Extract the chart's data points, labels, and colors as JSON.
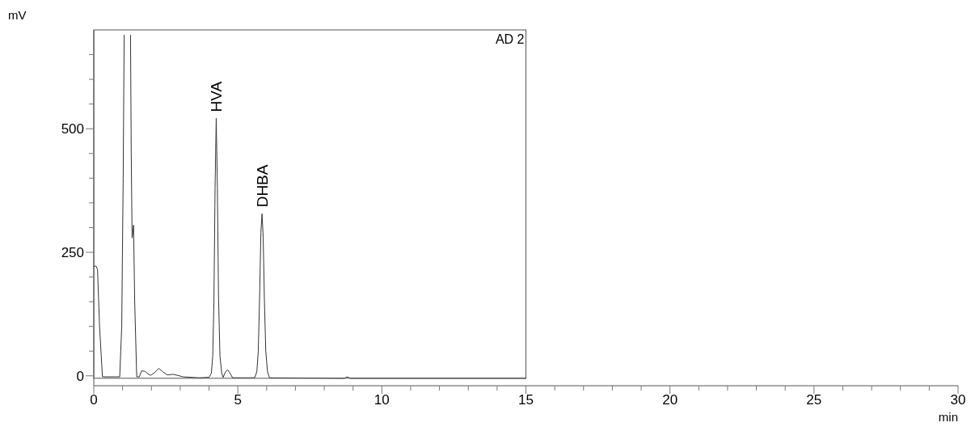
{
  "chart_data": {
    "type": "line",
    "xlabel": "min",
    "ylabel": "mV",
    "xlim": [
      0,
      30
    ],
    "xticks": [
      0,
      {
        "value": 1,
        "label": null
      },
      {
        "value": 2,
        "label": null
      },
      {
        "value": 3,
        "label": null
      },
      {
        "value": 4,
        "label": null
      },
      5,
      {
        "value": 6,
        "label": null
      },
      {
        "value": 7,
        "label": null
      },
      {
        "value": 8,
        "label": null
      },
      {
        "value": 9,
        "label": null
      },
      10,
      {
        "value": 11,
        "label": null
      },
      {
        "value": 12,
        "label": null
      },
      {
        "value": 13,
        "label": null
      },
      {
        "value": 14,
        "label": null
      },
      15,
      {
        "value": 16,
        "label": null
      },
      {
        "value": 17,
        "label": null
      },
      {
        "value": 18,
        "label": null
      },
      {
        "value": 19,
        "label": null
      },
      20,
      {
        "value": 21,
        "label": null
      },
      {
        "value": 22,
        "label": null
      },
      {
        "value": 23,
        "label": null
      },
      {
        "value": 24,
        "label": null
      },
      25,
      {
        "value": 26,
        "label": null
      },
      {
        "value": 27,
        "label": null
      },
      {
        "value": 28,
        "label": null
      },
      {
        "value": 29,
        "label": null
      },
      30
    ],
    "ylim": [
      -20,
      700
    ],
    "yticks": [
      0,
      {
        "value": 50,
        "label": null
      },
      {
        "value": 100,
        "label": null
      },
      {
        "value": 150,
        "label": null
      },
      {
        "value": 200,
        "label": null
      },
      250,
      {
        "value": 300,
        "label": null
      },
      {
        "value": 350,
        "label": null
      },
      {
        "value": 400,
        "label": null
      },
      {
        "value": 450,
        "label": null
      },
      500,
      {
        "value": 550,
        "label": null
      },
      {
        "value": 600,
        "label": null
      },
      {
        "value": 650,
        "label": null
      }
    ],
    "grid": false,
    "marker": "none",
    "line_style": "solid",
    "annotations": [
      "AD 2",
      {
        "text": "HVA",
        "x": 4.25,
        "y": 521
      },
      {
        "text": "DHBA",
        "x": 5.84,
        "y": 328
      }
    ],
    "series": [
      {
        "color": "#333333",
        "x": [
          0,
          0.08,
          0.13,
          0.2,
          0.3,
          0.9,
          0.97,
          1.02,
          1.055,
          1.16,
          1.275,
          1.3,
          1.33,
          1.36,
          1.38,
          1.42,
          1.49,
          1.58,
          1.66,
          1.78,
          1.88,
          1.97,
          2.1,
          2.26,
          2.4,
          2.54,
          2.77,
          3.1,
          3.67,
          4.0,
          4.08,
          4.13,
          4.17,
          4.21,
          4.25,
          4.29,
          4.33,
          4.38,
          4.44,
          4.49,
          4.57,
          4.65,
          4.72,
          4.82,
          5.2,
          5.58,
          5.66,
          5.71,
          5.76,
          5.8,
          5.84,
          5.88,
          5.92,
          5.97,
          6.03,
          6.1,
          8.7,
          8.8,
          8.9,
          15
        ],
        "values": [
          222,
          222,
          215,
          100,
          -2,
          -2,
          100,
          400,
          690,
          null,
          690,
          450,
          279,
          290,
          305,
          150,
          -2,
          -2,
          10,
          9,
          4,
          1,
          6,
          15,
          8,
          2,
          3,
          -2,
          -4,
          -3,
          5,
          40,
          150,
          380,
          521,
          380,
          160,
          40,
          5,
          -3,
          8,
          12,
          6,
          -4,
          -4,
          -4,
          8,
          50,
          170,
          290,
          328,
          280,
          160,
          50,
          8,
          -4,
          -5,
          -2,
          -5,
          -5
        ]
      }
    ]
  }
}
